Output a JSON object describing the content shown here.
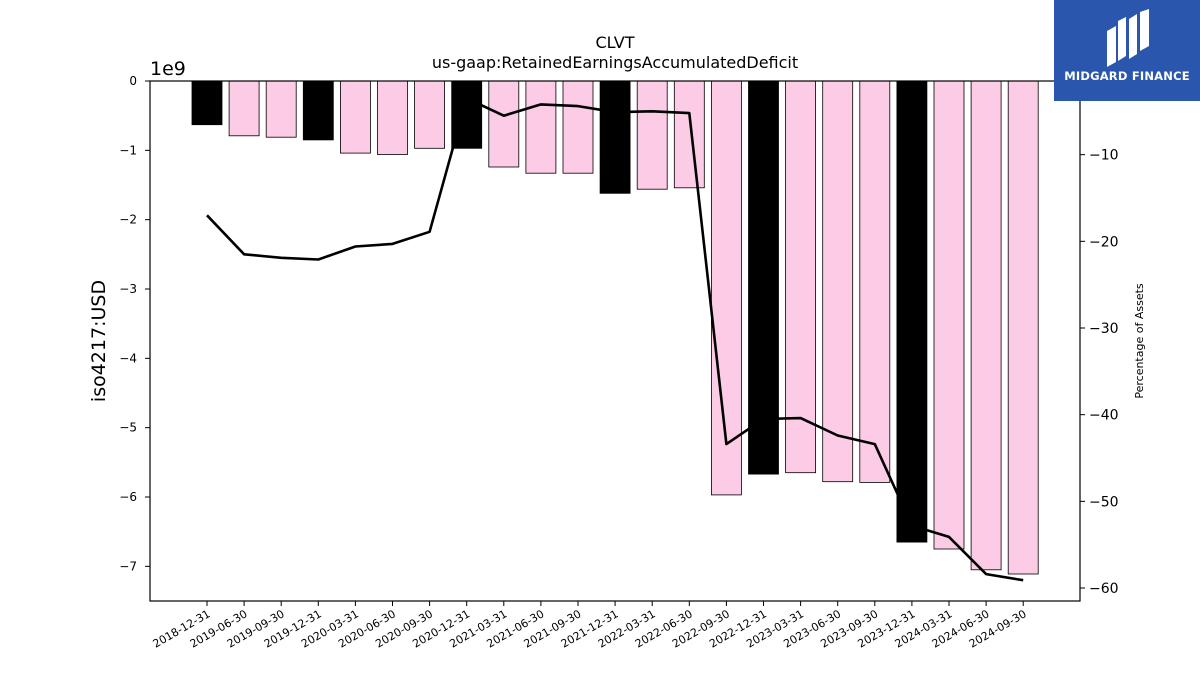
{
  "chart_data": {
    "type": "bar",
    "title": "CLVT",
    "subtitle": "us-gaap:RetainedEarningsAccumulatedDeficit",
    "ylabel": "iso4217:USD",
    "y_offset_label": "1e9",
    "y2label": "Percentage of Assets",
    "categories": [
      "2018-12-31",
      "2019-06-30",
      "2019-09-30",
      "2019-12-31",
      "2020-03-31",
      "2020-06-30",
      "2020-09-30",
      "2020-12-31",
      "2021-03-31",
      "2021-06-30",
      "2021-09-30",
      "2021-12-31",
      "2022-03-31",
      "2022-06-30",
      "2022-09-30",
      "2022-12-31",
      "2023-03-31",
      "2023-06-30",
      "2023-09-30",
      "2023-12-31",
      "2024-03-31",
      "2024-06-30",
      "2024-09-30"
    ],
    "series": [
      {
        "type": "bar",
        "axis": "left",
        "values": [
          -0.63,
          -0.79,
          -0.81,
          -0.85,
          -1.04,
          -1.06,
          -0.97,
          -0.97,
          -1.24,
          -1.33,
          -1.33,
          -1.62,
          -1.56,
          -1.54,
          -5.97,
          -5.67,
          -5.65,
          -5.78,
          -5.79,
          -6.65,
          -6.75,
          -7.05,
          -7.11
        ],
        "annual": [
          true,
          false,
          false,
          true,
          false,
          false,
          false,
          true,
          false,
          false,
          false,
          true,
          false,
          false,
          false,
          true,
          false,
          false,
          false,
          true,
          false,
          false,
          false
        ]
      },
      {
        "type": "line",
        "axis": "right",
        "values": [
          -17.0,
          -21.5,
          -21.9,
          -22.1,
          -20.6,
          -20.3,
          -18.9,
          -3.5,
          -5.5,
          -4.2,
          -4.4,
          -5.1,
          -5.0,
          -5.2,
          -43.4,
          -40.5,
          -40.4,
          -42.4,
          -43.4,
          -52.8,
          -54.1,
          -58.4,
          -59.1
        ]
      }
    ],
    "ylim": [
      -7.5,
      0
    ],
    "yticks": [
      0,
      -1,
      -2,
      -3,
      -4,
      -5,
      -6,
      -7
    ],
    "y2lim": [
      -61.5,
      -1.5
    ],
    "y2ticks": [
      -10,
      -20,
      -30,
      -40,
      -50,
      -60
    ],
    "colors": {
      "annual_bar": "#000000",
      "quarter_bar": "#fccbe5",
      "line": "#000000"
    },
    "grid": false,
    "legend": "none"
  },
  "logo": {
    "text": "MIDGARD FINANCE",
    "bg": "#2a56ad"
  }
}
